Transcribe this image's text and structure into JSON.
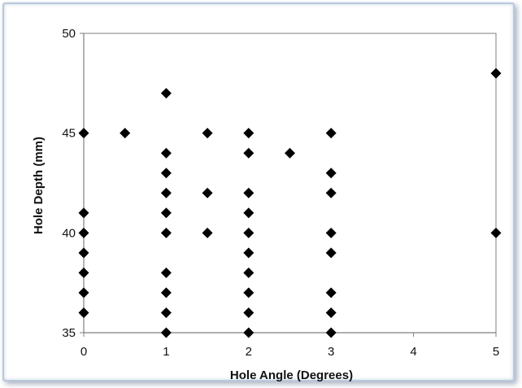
{
  "chart_data": {
    "type": "scatter",
    "title": "",
    "xlabel": "Hole Angle (Degrees)",
    "ylabel": "Hole Depth (mm)",
    "xlim": [
      0,
      5
    ],
    "ylim": [
      35,
      50
    ],
    "xticks": [
      0,
      1,
      2,
      3,
      4,
      5
    ],
    "yticks": [
      35,
      40,
      45,
      50
    ],
    "grid": false,
    "legend": "none",
    "marker": "diamond",
    "marker_color": "#000000",
    "points": [
      {
        "x": 0,
        "y": 45
      },
      {
        "x": 0,
        "y": 41
      },
      {
        "x": 0,
        "y": 40
      },
      {
        "x": 0,
        "y": 39
      },
      {
        "x": 0,
        "y": 38
      },
      {
        "x": 0,
        "y": 37
      },
      {
        "x": 0,
        "y": 36
      },
      {
        "x": 0.5,
        "y": 45
      },
      {
        "x": 1,
        "y": 47
      },
      {
        "x": 1,
        "y": 44
      },
      {
        "x": 1,
        "y": 43
      },
      {
        "x": 1,
        "y": 42
      },
      {
        "x": 1,
        "y": 41
      },
      {
        "x": 1,
        "y": 40
      },
      {
        "x": 1,
        "y": 38
      },
      {
        "x": 1,
        "y": 37
      },
      {
        "x": 1,
        "y": 36
      },
      {
        "x": 1,
        "y": 35
      },
      {
        "x": 1.5,
        "y": 45
      },
      {
        "x": 1.5,
        "y": 42
      },
      {
        "x": 1.5,
        "y": 40
      },
      {
        "x": 2,
        "y": 45
      },
      {
        "x": 2,
        "y": 44
      },
      {
        "x": 2,
        "y": 42
      },
      {
        "x": 2,
        "y": 41
      },
      {
        "x": 2,
        "y": 40
      },
      {
        "x": 2,
        "y": 39
      },
      {
        "x": 2,
        "y": 38
      },
      {
        "x": 2,
        "y": 37
      },
      {
        "x": 2,
        "y": 36
      },
      {
        "x": 2,
        "y": 35
      },
      {
        "x": 2.5,
        "y": 44
      },
      {
        "x": 3,
        "y": 45
      },
      {
        "x": 3,
        "y": 43
      },
      {
        "x": 3,
        "y": 42
      },
      {
        "x": 3,
        "y": 40
      },
      {
        "x": 3,
        "y": 39
      },
      {
        "x": 3,
        "y": 37
      },
      {
        "x": 3,
        "y": 36
      },
      {
        "x": 3,
        "y": 35
      },
      {
        "x": 5,
        "y": 48
      },
      {
        "x": 5,
        "y": 40
      }
    ]
  }
}
